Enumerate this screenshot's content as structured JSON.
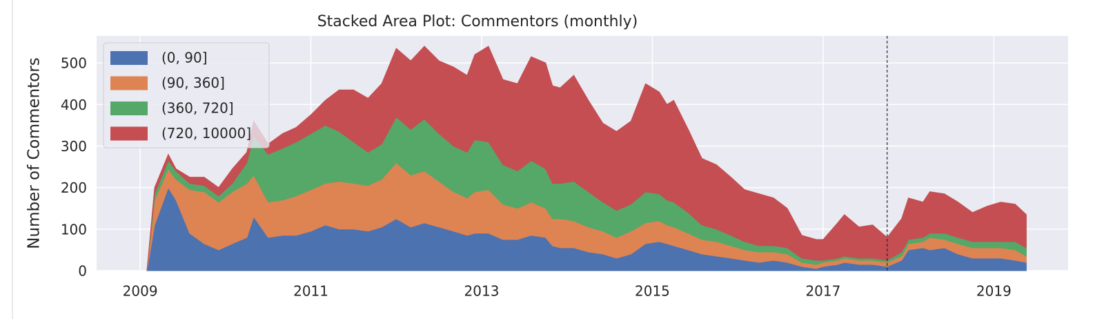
{
  "chart_data": {
    "type": "stacked_area",
    "title": "Stacked Area Plot: Commentors (monthly)",
    "ylabel": "Number of Commentors",
    "x": [
      2009.08,
      2009.17,
      2009.33,
      2009.42,
      2009.58,
      2009.75,
      2009.92,
      2010.08,
      2010.25,
      2010.33,
      2010.5,
      2010.67,
      2010.83,
      2011.0,
      2011.17,
      2011.33,
      2011.5,
      2011.67,
      2011.83,
      2012.0,
      2012.17,
      2012.33,
      2012.5,
      2012.67,
      2012.83,
      2012.92,
      2013.08,
      2013.25,
      2013.42,
      2013.58,
      2013.75,
      2013.83,
      2013.92,
      2014.08,
      2014.25,
      2014.42,
      2014.58,
      2014.75,
      2014.92,
      2015.08,
      2015.17,
      2015.25,
      2015.42,
      2015.58,
      2015.75,
      2015.92,
      2016.08,
      2016.25,
      2016.42,
      2016.58,
      2016.75,
      2016.92,
      2017.0,
      2017.17,
      2017.25,
      2017.42,
      2017.58,
      2017.75,
      2017.92,
      2018.0,
      2018.17,
      2018.25,
      2018.42,
      2018.58,
      2018.75,
      2018.92,
      2019.08,
      2019.25,
      2019.38
    ],
    "series": [
      {
        "name": "(0, 90]",
        "color": "#4c72b0",
        "values": [
          0,
          110,
          200,
          170,
          90,
          65,
          50,
          65,
          80,
          130,
          80,
          85,
          85,
          95,
          110,
          100,
          100,
          95,
          105,
          125,
          105,
          115,
          105,
          95,
          85,
          90,
          90,
          75,
          75,
          85,
          80,
          60,
          55,
          55,
          45,
          40,
          30,
          40,
          65,
          70,
          65,
          60,
          50,
          40,
          35,
          30,
          25,
          20,
          25,
          20,
          10,
          5,
          10,
          15,
          20,
          15,
          15,
          10,
          25,
          50,
          55,
          50,
          55,
          40,
          30,
          30,
          30,
          25,
          20
        ]
      },
      {
        "name": "(90, 360]",
        "color": "#dd8452",
        "values": [
          0,
          60,
          45,
          50,
          105,
          125,
          115,
          125,
          130,
          100,
          85,
          85,
          95,
          100,
          100,
          115,
          110,
          110,
          115,
          135,
          125,
          125,
          110,
          95,
          90,
          100,
          105,
          85,
          75,
          80,
          70,
          65,
          70,
          65,
          60,
          55,
          50,
          55,
          50,
          50,
          45,
          45,
          40,
          35,
          35,
          30,
          25,
          25,
          20,
          20,
          10,
          10,
          10,
          10,
          10,
          10,
          10,
          10,
          10,
          15,
          15,
          30,
          20,
          25,
          25,
          25,
          25,
          25,
          15
        ]
      },
      {
        "name": "(360, 720]",
        "color": "#55a868",
        "values": [
          0,
          15,
          20,
          20,
          15,
          15,
          15,
          20,
          50,
          95,
          115,
          125,
          130,
          135,
          140,
          120,
          100,
          80,
          85,
          110,
          110,
          125,
          115,
          110,
          110,
          125,
          115,
          95,
          90,
          100,
          95,
          85,
          85,
          95,
          85,
          70,
          65,
          65,
          75,
          65,
          60,
          60,
          50,
          35,
          30,
          25,
          20,
          15,
          15,
          15,
          10,
          10,
          5,
          5,
          5,
          5,
          5,
          5,
          10,
          10,
          10,
          10,
          15,
          15,
          15,
          15,
          15,
          20,
          20
        ]
      },
      {
        "name": "(720, 10000]",
        "color": "#c44e52",
        "values": [
          0,
          15,
          15,
          5,
          15,
          20,
          20,
          35,
          25,
          35,
          25,
          35,
          35,
          45,
          60,
          100,
          125,
          130,
          145,
          165,
          165,
          175,
          175,
          190,
          185,
          205,
          230,
          205,
          210,
          250,
          255,
          235,
          230,
          255,
          220,
          190,
          190,
          200,
          260,
          245,
          230,
          245,
          200,
          160,
          155,
          140,
          125,
          125,
          115,
          95,
          55,
          50,
          50,
          85,
          100,
          75,
          80,
          55,
          80,
          100,
          85,
          100,
          95,
          85,
          70,
          85,
          95,
          90,
          80
        ]
      }
    ],
    "xlim": [
      2008.49,
      2019.87
    ],
    "xticks": [
      2009,
      2011,
      2013,
      2015,
      2017,
      2019
    ],
    "ylim": [
      0,
      565
    ],
    "yticks": [
      0,
      100,
      200,
      300,
      400,
      500
    ],
    "vline": 2017.75,
    "grid": true,
    "legend": "upper left"
  }
}
